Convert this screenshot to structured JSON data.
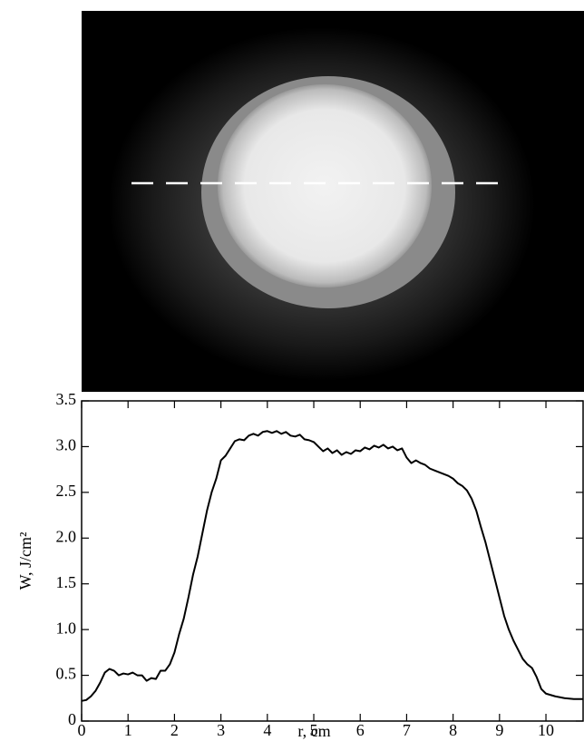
{
  "chart_data": {
    "type": "line",
    "xlabel": "r, cm",
    "ylabel": "W, J/cm²",
    "xlim": [
      0,
      10.8
    ],
    "ylim": [
      0,
      3.5
    ],
    "xticks": [
      0,
      1,
      2,
      3,
      4,
      5,
      6,
      7,
      8,
      9,
      10
    ],
    "yticks": [
      0,
      0.5,
      {
        "value": 1,
        "label": "1.0"
      },
      1.5,
      {
        "value": 2,
        "label": "2.0"
      },
      2.5,
      {
        "value": 3,
        "label": "3.0"
      },
      3.5
    ],
    "x": [
      0,
      0.1,
      0.2,
      0.3,
      0.4,
      0.5,
      0.6,
      0.7,
      0.8,
      0.9,
      1.0,
      1.1,
      1.2,
      1.3,
      1.4,
      1.5,
      1.6,
      1.7,
      1.8,
      1.9,
      2.0,
      2.1,
      2.2,
      2.3,
      2.4,
      2.5,
      2.6,
      2.7,
      2.8,
      2.9,
      3.0,
      3.1,
      3.2,
      3.3,
      3.4,
      3.5,
      3.6,
      3.7,
      3.8,
      3.9,
      4.0,
      4.1,
      4.2,
      4.3,
      4.4,
      4.5,
      4.6,
      4.7,
      4.8,
      4.9,
      5.0,
      5.1,
      5.2,
      5.3,
      5.4,
      5.5,
      5.6,
      5.7,
      5.8,
      5.9,
      6.0,
      6.1,
      6.2,
      6.3,
      6.4,
      6.5,
      6.6,
      6.7,
      6.8,
      6.9,
      7.0,
      7.1,
      7.2,
      7.3,
      7.4,
      7.5,
      7.6,
      7.7,
      7.8,
      7.9,
      8.0,
      8.1,
      8.2,
      8.3,
      8.4,
      8.5,
      8.6,
      8.7,
      8.8,
      8.9,
      9.0,
      9.1,
      9.2,
      9.3,
      9.4,
      9.5,
      9.6,
      9.7,
      9.8,
      9.9,
      10.0,
      10.2,
      10.4,
      10.6,
      10.8
    ],
    "series": [
      {
        "color": "#000000",
        "values": [
          0.22,
          0.23,
          0.27,
          0.33,
          0.42,
          0.53,
          0.57,
          0.55,
          0.5,
          0.52,
          0.51,
          0.53,
          0.5,
          0.5,
          0.44,
          0.47,
          0.46,
          0.55,
          0.55,
          0.62,
          0.75,
          0.95,
          1.12,
          1.35,
          1.6,
          1.8,
          2.05,
          2.3,
          2.5,
          2.65,
          2.85,
          2.9,
          2.98,
          3.06,
          3.08,
          3.07,
          3.12,
          3.14,
          3.12,
          3.16,
          3.17,
          3.15,
          3.17,
          3.14,
          3.16,
          3.12,
          3.11,
          3.13,
          3.08,
          3.07,
          3.05,
          3.0,
          2.95,
          2.98,
          2.93,
          2.96,
          2.91,
          2.94,
          2.92,
          2.96,
          2.95,
          2.99,
          2.97,
          3.01,
          2.99,
          3.02,
          2.98,
          3.0,
          2.96,
          2.98,
          2.88,
          2.82,
          2.85,
          2.82,
          2.8,
          2.76,
          2.74,
          2.72,
          2.7,
          2.68,
          2.65,
          2.6,
          2.57,
          2.52,
          2.43,
          2.3,
          2.12,
          1.95,
          1.75,
          1.55,
          1.35,
          1.15,
          1.0,
          0.88,
          0.78,
          0.68,
          0.62,
          0.58,
          0.48,
          0.35,
          0.3,
          0.27,
          0.25,
          0.24,
          0.24
        ]
      }
    ]
  }
}
